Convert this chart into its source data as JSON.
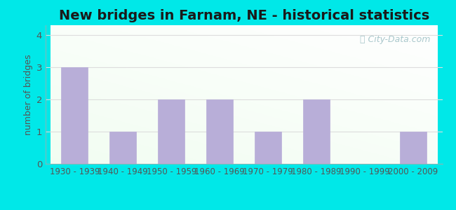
{
  "title": "New bridges in Farnam, NE - historical statistics",
  "categories": [
    "1930 - 1939",
    "1940 - 1949",
    "1950 - 1959",
    "1960 - 1969",
    "1970 - 1979",
    "1980 - 1989",
    "1990 - 1999",
    "2000 - 2009"
  ],
  "values": [
    3,
    1,
    2,
    2,
    1,
    2,
    0,
    1
  ],
  "bar_color": "#b8aed8",
  "bar_edge_color": "#b8aed8",
  "ylabel": "number of bridges",
  "ylim": [
    0,
    4.3
  ],
  "yticks": [
    0,
    1,
    2,
    3,
    4
  ],
  "title_fontsize": 14,
  "title_fontweight": "bold",
  "outer_bg_color": "#00e8e8",
  "watermark_text": "ⓘ City-Data.com",
  "watermark_color": "#aac8cc",
  "axis_color": "#555555",
  "tick_label_fontsize": 8.5,
  "ylabel_fontsize": 9,
  "grid_color": "#dddddd"
}
